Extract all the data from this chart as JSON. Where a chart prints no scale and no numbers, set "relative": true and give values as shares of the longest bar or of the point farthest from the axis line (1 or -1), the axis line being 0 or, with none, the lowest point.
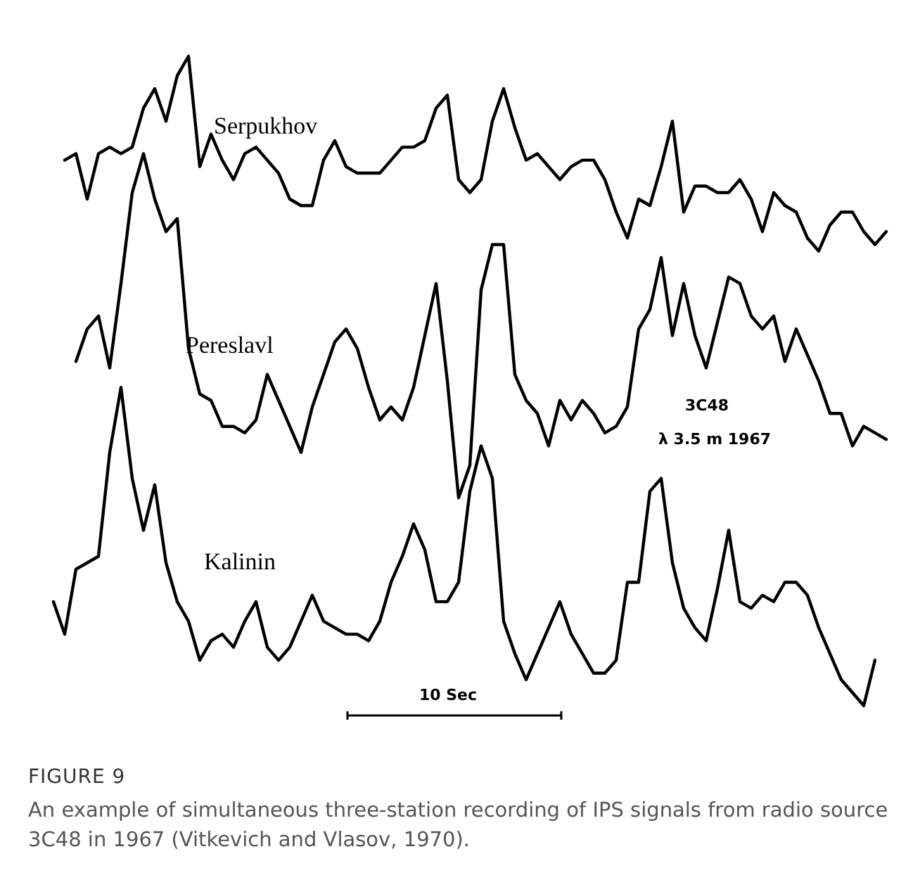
{
  "chart_data": {
    "type": "line",
    "relative": true,
    "title": "FIGURE 9",
    "subtitle": "An example of simultaneous three-station recording of IPS signals from radio source 3C48 in 1967 (Vitkevich and Vlasov, 1970).",
    "annotations": [
      "3C48",
      "λ 3.5 m 1967",
      "10 Sec"
    ],
    "categories": [
      null,
      null,
      null,
      null,
      null,
      null,
      null,
      null,
      null,
      null,
      null,
      null,
      null,
      null,
      null,
      null,
      null,
      null,
      null,
      null,
      null,
      null,
      null,
      null,
      null,
      null,
      null,
      null,
      null,
      null,
      null,
      null,
      null,
      null,
      null,
      null,
      null,
      null,
      null,
      null,
      null,
      null,
      null,
      null,
      null,
      null,
      null,
      null,
      null,
      null,
      null,
      null,
      null,
      null,
      null,
      null,
      null,
      null,
      null,
      null,
      null,
      null,
      null,
      null,
      null,
      null,
      null,
      null,
      null,
      null,
      null,
      null,
      null,
      null,
      null
    ],
    "series": [
      {
        "name": "Serpukhov",
        "color": "#000000",
        "values": [
          null,
          0.84,
          0.85,
          0.78,
          0.85,
          0.86,
          0.85,
          0.86,
          0.92,
          0.95,
          0.9,
          0.97,
          1,
          0.83,
          0.88,
          0.84,
          0.81,
          0.85,
          0.86,
          0.84,
          0.82,
          0.78,
          0.77,
          0.77,
          0.84,
          0.87,
          0.83,
          0.82,
          0.82,
          0.82,
          0.84,
          0.86,
          0.86,
          0.87,
          0.92,
          0.94,
          0.81,
          0.79,
          0.81,
          0.9,
          0.95,
          0.89,
          0.84,
          0.85,
          0.83,
          0.81,
          0.83,
          0.84,
          0.84,
          0.81,
          0.76,
          0.72,
          0.78,
          0.77,
          0.83,
          0.9,
          0.76,
          0.8,
          0.8,
          0.79,
          0.79,
          0.81,
          0.78,
          0.73,
          0.79,
          0.77,
          0.76,
          0.72,
          0.7,
          0.74,
          0.76,
          0.76,
          0.73,
          0.71,
          0.73
        ]
      },
      {
        "name": "Pereslavl",
        "color": "#000000",
        "values": [
          null,
          null,
          0.53,
          0.58,
          0.6,
          0.52,
          0.65,
          0.79,
          0.85,
          0.78,
          0.73,
          0.75,
          0.55,
          0.48,
          0.47,
          0.43,
          0.43,
          0.42,
          0.44,
          0.51,
          0.47,
          0.43,
          0.39,
          0.46,
          0.51,
          0.56,
          0.58,
          0.55,
          0.49,
          0.44,
          0.46,
          0.44,
          0.49,
          0.57,
          0.65,
          0.5,
          0.32,
          0.37,
          0.64,
          0.71,
          0.71,
          0.51,
          0.47,
          0.45,
          0.4,
          0.47,
          0.44,
          0.47,
          0.45,
          0.42,
          0.43,
          0.46,
          0.58,
          0.61,
          0.69,
          0.57,
          0.65,
          0.57,
          0.52,
          0.59,
          0.66,
          0.65,
          0.6,
          0.58,
          0.6,
          0.53,
          0.58,
          0.54,
          0.5,
          0.45,
          0.45,
          0.4,
          0.43,
          0.42,
          0.41
        ]
      },
      {
        "name": "Kalinin",
        "color": "#000000",
        "values": [
          0.16,
          0.11,
          0.21,
          0.22,
          0.23,
          0.39,
          0.49,
          0.35,
          0.27,
          0.34,
          0.22,
          0.16,
          0.13,
          0.07,
          0.1,
          0.11,
          0.09,
          0.13,
          0.16,
          0.09,
          0.07,
          0.09,
          0.13,
          0.17,
          0.13,
          0.12,
          0.11,
          0.11,
          0.1,
          0.13,
          0.19,
          0.23,
          0.28,
          0.24,
          0.16,
          0.16,
          0.19,
          0.33,
          0.4,
          0.35,
          0.13,
          0.08,
          0.04,
          0.08,
          0.12,
          0.16,
          0.11,
          0.08,
          0.05,
          0.05,
          0.07,
          0.19,
          0.19,
          0.33,
          0.35,
          0.22,
          0.15,
          0.12,
          0.1,
          0.18,
          0.27,
          0.16,
          0.15,
          0.17,
          0.16,
          0.19,
          0.19,
          0.17,
          0.12,
          0.08,
          0.04,
          0.02,
          0,
          0.07,
          null
        ]
      }
    ]
  }
}
